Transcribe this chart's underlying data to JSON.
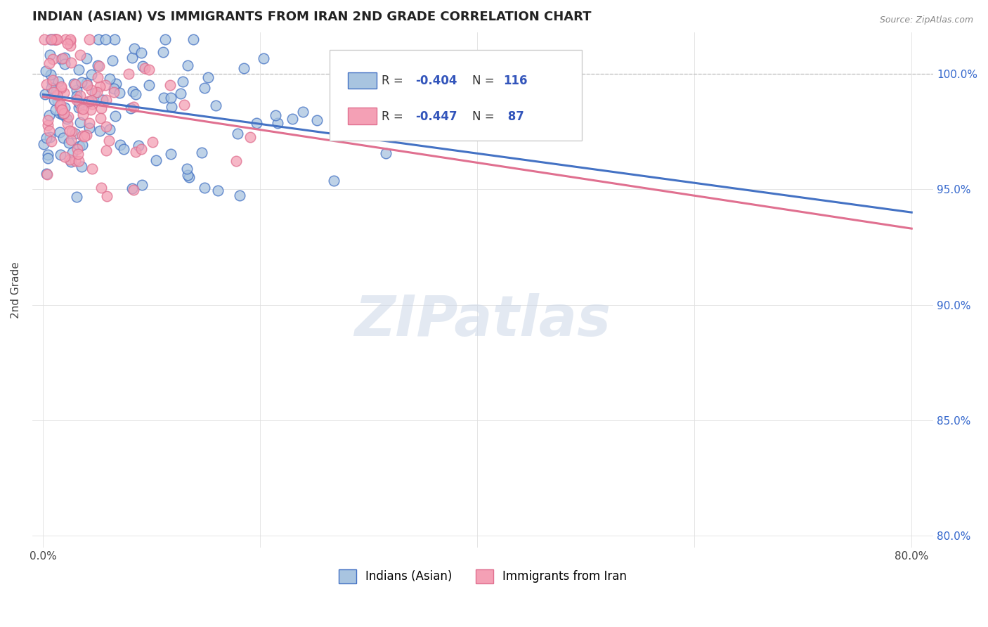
{
  "title": "INDIAN (ASIAN) VS IMMIGRANTS FROM IRAN 2ND GRADE CORRELATION CHART",
  "source_text": "Source: ZipAtlas.com",
  "ylabel": "2nd Grade",
  "xlim": [
    -1.0,
    82.0
  ],
  "ylim": [
    79.5,
    101.8
  ],
  "yticks": [
    80.0,
    85.0,
    90.0,
    95.0,
    100.0
  ],
  "ytick_labels": [
    "80.0%",
    "85.0%",
    "90.0%",
    "95.0%",
    "100.0%"
  ],
  "xticks": [
    0.0,
    20.0,
    40.0,
    60.0,
    80.0
  ],
  "xtick_labels": [
    "0.0%",
    "",
    "",
    "",
    "80.0%"
  ],
  "legend_label1": "Indians (Asian)",
  "legend_label2": "Immigrants from Iran",
  "blue_fill": "#a8c4e0",
  "blue_edge": "#4472c4",
  "pink_fill": "#f4a0b5",
  "pink_edge": "#e07090",
  "blue_line_color": "#4472c4",
  "pink_line_color": "#e07090",
  "watermark": "ZIPatlas",
  "blue_R": -0.404,
  "blue_N": 116,
  "pink_R": -0.447,
  "pink_N": 87,
  "blue_line_x0": 0.0,
  "blue_line_y0": 99.1,
  "blue_line_x1": 80.0,
  "blue_line_y1": 94.0,
  "pink_line_x0": 0.0,
  "pink_line_y0": 99.0,
  "pink_line_x1": 80.0,
  "pink_line_y1": 93.3,
  "random_seed": 42
}
